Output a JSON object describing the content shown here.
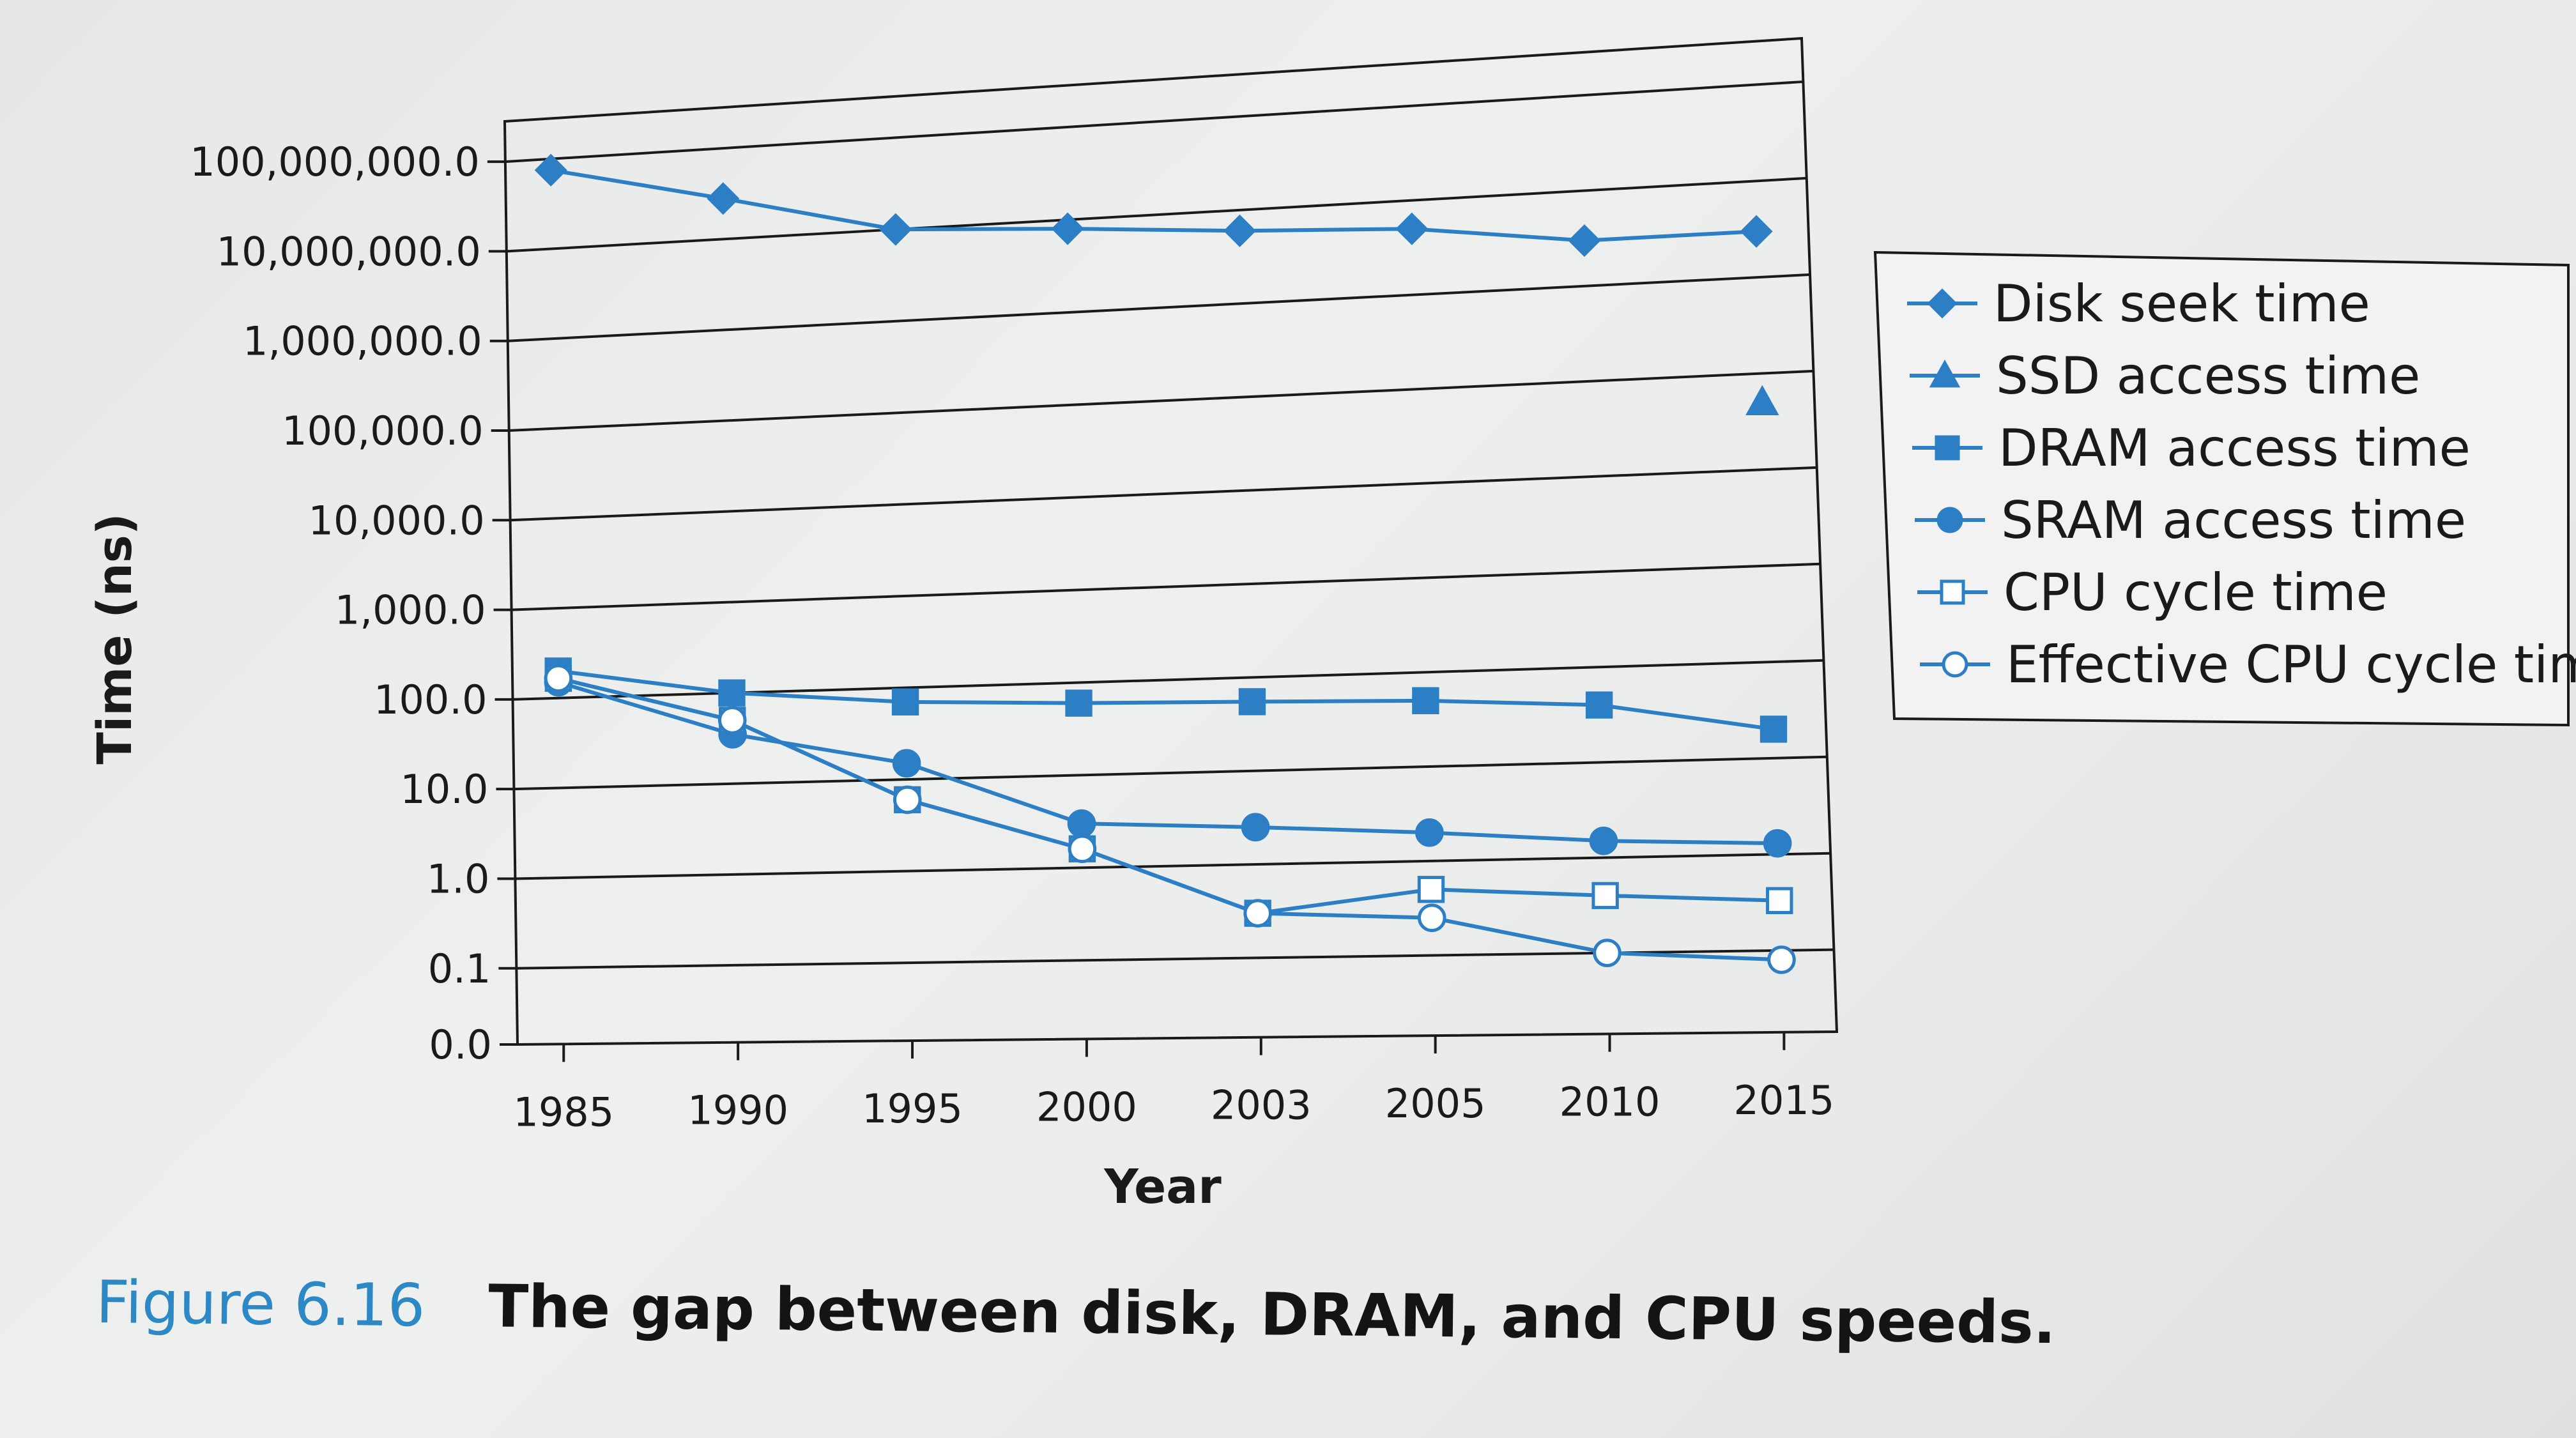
{
  "chart_data": {
    "type": "line",
    "title": "",
    "xlabel": "Year",
    "ylabel": "Time (ns)",
    "yscale": "log",
    "categories": [
      "1985",
      "1990",
      "1995",
      "2000",
      "2003",
      "2005",
      "2010",
      "2015"
    ],
    "y_ticks": [
      "100,000,000.0",
      "10,000,000.0",
      "1,000,000.0",
      "100,000.0",
      "10,000.0",
      "1,000.0",
      "100.0",
      "10.0",
      "1.0",
      "0.1",
      "0.0"
    ],
    "series": [
      {
        "name": "Disk seek time",
        "marker": "diamond",
        "filled": true,
        "values": [
          75000000,
          28000000,
          10000000,
          8000000,
          6000000,
          5000000,
          3000000,
          3000000
        ]
      },
      {
        "name": "SSD access time",
        "marker": "triangle",
        "filled": true,
        "values": [
          null,
          null,
          null,
          null,
          null,
          null,
          null,
          50000
        ]
      },
      {
        "name": "DRAM access time",
        "marker": "square",
        "filled": true,
        "values": [
          200,
          100,
          70,
          60,
          55,
          50,
          40,
          20
        ]
      },
      {
        "name": "SRAM access time",
        "marker": "circle",
        "filled": true,
        "values": [
          150,
          35,
          15,
          3,
          2.5,
          2,
          1.5,
          1.3
        ]
      },
      {
        "name": "CPU cycle time",
        "marker": "square",
        "filled": false,
        "values": [
          166,
          50,
          6,
          1.6,
          0.3,
          0.5,
          0.4,
          0.33
        ]
      },
      {
        "name": "Effective CPU cycle time",
        "marker": "circle",
        "filled": false,
        "values": [
          166,
          50,
          6,
          1.6,
          0.3,
          0.25,
          0.1,
          0.08
        ]
      }
    ],
    "legend_position": "right",
    "grid": true,
    "series_color": "#2c7fc4"
  },
  "caption": {
    "label": "Figure 6.16",
    "text": "The gap between disk, DRAM, and CPU speeds."
  }
}
